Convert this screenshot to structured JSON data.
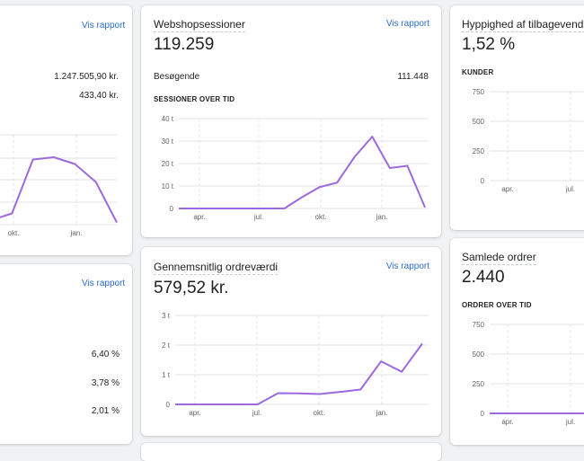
{
  "cards": {
    "top_left": {
      "link": "Vis rapport",
      "rows": [
        "1.247.505,90 kr.",
        "433,40 kr."
      ],
      "x_ticks": [
        "okt.",
        "jan."
      ]
    },
    "sessions": {
      "title": "Webshopsessioner",
      "link": "Vis rapport",
      "value": "119.259",
      "row_label": "Besøgende",
      "row_value": "111.448",
      "subtitle": "SESSIONER OVER TID",
      "y_ticks": [
        "40 t",
        "30 t",
        "20 t",
        "10 t",
        "0"
      ],
      "x_ticks": [
        "apr.",
        "jul.",
        "okt.",
        "jan."
      ]
    },
    "returning": {
      "title": "Hyppighed af tilbagevendende",
      "value": "1,52 %",
      "subtitle": "KUNDER",
      "y_ticks": [
        "750",
        "500",
        "250",
        "0"
      ],
      "x_ticks": [
        "apr.",
        "jul."
      ]
    },
    "bottom_left": {
      "link": "Vis rapport",
      "rows": [
        "6,40 %",
        "3,78 %",
        "2,01 %"
      ]
    },
    "aov": {
      "title": "Gennemsnitlig ordreværdi",
      "link": "Vis rapport",
      "value": "579,52 kr.",
      "y_ticks": [
        "3 t",
        "2 t",
        "1 t",
        "0"
      ],
      "x_ticks": [
        "apr.",
        "jul.",
        "okt.",
        "jan."
      ]
    },
    "orders": {
      "title": "Samlede ordrer",
      "value": "2.440",
      "subtitle": "ORDRER OVER TID",
      "y_ticks": [
        "750",
        "500",
        "250",
        "0"
      ],
      "x_ticks": [
        "apr.",
        "jul."
      ]
    }
  },
  "colors": {
    "line": "#9c6ade",
    "link": "#2c6ecb",
    "grid": "#e1e3e5"
  },
  "chart_data": [
    {
      "type": "line",
      "name": "top_left",
      "ylim": [
        0,
        40
      ],
      "x_ticks": [
        "okt.",
        "jan."
      ],
      "values": [
        2,
        5,
        29,
        30,
        27,
        19,
        1
      ]
    },
    {
      "type": "line",
      "name": "sessions",
      "ylim": [
        0,
        40
      ],
      "y_ticks": [
        "40 t",
        "30 t",
        "20 t",
        "10 t",
        "0"
      ],
      "x_ticks": [
        "apr.",
        "jul.",
        "okt.",
        "jan."
      ],
      "values": [
        0,
        0,
        0,
        0,
        0,
        0,
        0,
        5,
        9.5,
        11.5,
        23,
        32,
        18,
        19,
        0.5
      ]
    },
    {
      "type": "line",
      "name": "returning",
      "ylim": [
        0,
        750
      ],
      "y_ticks": [
        "750",
        "500",
        "250",
        "0"
      ],
      "x_ticks": [
        "apr.",
        "jul."
      ],
      "values": [
        null,
        null,
        null,
        null,
        null,
        null,
        null,
        0,
        20,
        60
      ]
    },
    {
      "type": "line",
      "name": "aov",
      "ylim": [
        0,
        3
      ],
      "y_ticks": [
        "3 t",
        "2 t",
        "1 t",
        "0"
      ],
      "x_ticks": [
        "apr.",
        "jul.",
        "okt.",
        "jan."
      ],
      "values": [
        0,
        0,
        0,
        0,
        0,
        0.38,
        0.37,
        0.35,
        0.42,
        0.5,
        1.45,
        1.1,
        2.05
      ]
    },
    {
      "type": "line",
      "name": "orders",
      "ylim": [
        0,
        750
      ],
      "y_ticks": [
        "750",
        "500",
        "250",
        "0"
      ],
      "x_ticks": [
        "apr.",
        "jul."
      ],
      "values": [
        0,
        0,
        0,
        0,
        0,
        0,
        0,
        0,
        0,
        0,
        0,
        40
      ]
    }
  ]
}
